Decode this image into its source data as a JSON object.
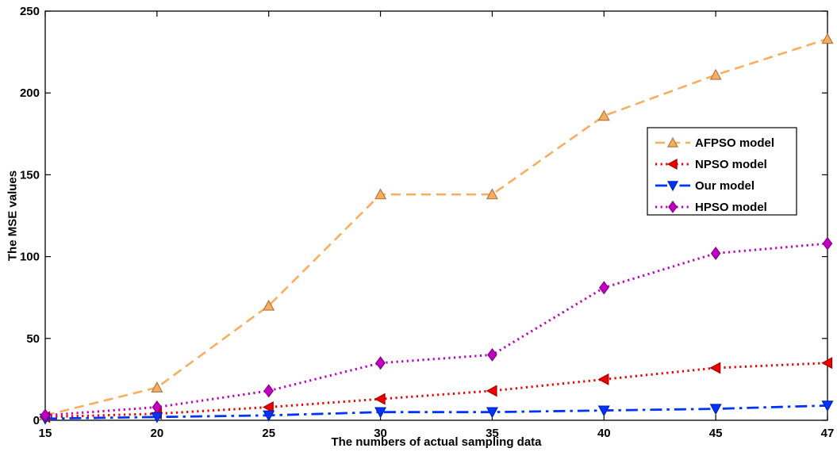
{
  "figure": {
    "background": "#FFFFFF",
    "axes_color": "#000000"
  },
  "chart_data": {
    "type": "line",
    "title": "",
    "xlabel": "The numbers of actual sampling data",
    "ylabel": "The MSE values",
    "categories": [
      15,
      20,
      25,
      30,
      35,
      40,
      45,
      47
    ],
    "x_tick_labels": [
      "15",
      "20",
      "25",
      "30",
      "35",
      "40",
      "45",
      "47"
    ],
    "y_ticks": [
      0,
      50,
      100,
      150,
      200,
      250
    ],
    "ylim": [
      0,
      250
    ],
    "x_spacing": "equal",
    "grid": false,
    "legend_position": "right-center-inset",
    "series": [
      {
        "name": "AFPSO model",
        "color": "#F9AE5F",
        "linestyle": "dashed",
        "marker": "triangle-up",
        "values": [
          3,
          20,
          70,
          138,
          138,
          186,
          211,
          233
        ]
      },
      {
        "name": "NPSO model",
        "color": "#EE0000",
        "linestyle": "dotted",
        "marker": "triangle-left",
        "values": [
          2,
          4,
          8,
          13,
          18,
          25,
          32,
          35
        ]
      },
      {
        "name": "Our model",
        "color": "#0033FF",
        "linestyle": "dash-dot",
        "marker": "triangle-down",
        "values": [
          1,
          2,
          3,
          5,
          5,
          6,
          7,
          9
        ]
      },
      {
        "name": "HPSO model",
        "color": "#C000C0",
        "linestyle": "dotted",
        "marker": "diamond",
        "values": [
          3,
          8,
          18,
          35,
          40,
          81,
          102,
          108
        ]
      }
    ]
  }
}
